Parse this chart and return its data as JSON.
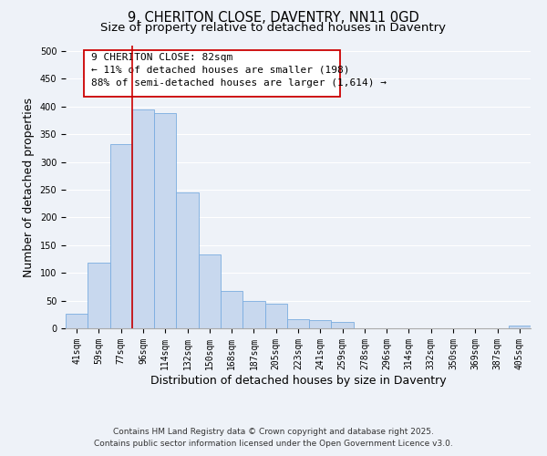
{
  "title": "9, CHERITON CLOSE, DAVENTRY, NN11 0GD",
  "subtitle": "Size of property relative to detached houses in Daventry",
  "xlabel": "Distribution of detached houses by size in Daventry",
  "ylabel": "Number of detached properties",
  "bar_labels": [
    "41sqm",
    "59sqm",
    "77sqm",
    "96sqm",
    "114sqm",
    "132sqm",
    "150sqm",
    "168sqm",
    "187sqm",
    "205sqm",
    "223sqm",
    "241sqm",
    "259sqm",
    "278sqm",
    "296sqm",
    "314sqm",
    "332sqm",
    "350sqm",
    "369sqm",
    "387sqm",
    "405sqm"
  ],
  "bar_heights": [
    27,
    118,
    333,
    395,
    388,
    245,
    133,
    68,
    50,
    45,
    17,
    14,
    11,
    0,
    0,
    0,
    0,
    0,
    0,
    0,
    5
  ],
  "bar_color": "#c8d8ee",
  "bar_edgecolor": "#7aace0",
  "vline_color": "#cc0000",
  "annotation_line1": "9 CHERITON CLOSE: 82sqm",
  "annotation_line2": "← 11% of detached houses are smaller (198)",
  "annotation_line3": "88% of semi-detached houses are larger (1,614) →",
  "ylim": [
    0,
    510
  ],
  "yticks": [
    0,
    50,
    100,
    150,
    200,
    250,
    300,
    350,
    400,
    450,
    500
  ],
  "footer_line1": "Contains HM Land Registry data © Crown copyright and database right 2025.",
  "footer_line2": "Contains public sector information licensed under the Open Government Licence v3.0.",
  "background_color": "#eef2f8",
  "grid_color": "#ffffff",
  "title_fontsize": 10.5,
  "subtitle_fontsize": 9.5,
  "axis_label_fontsize": 9,
  "tick_fontsize": 7,
  "footer_fontsize": 6.5,
  "annotation_fontsize": 8
}
